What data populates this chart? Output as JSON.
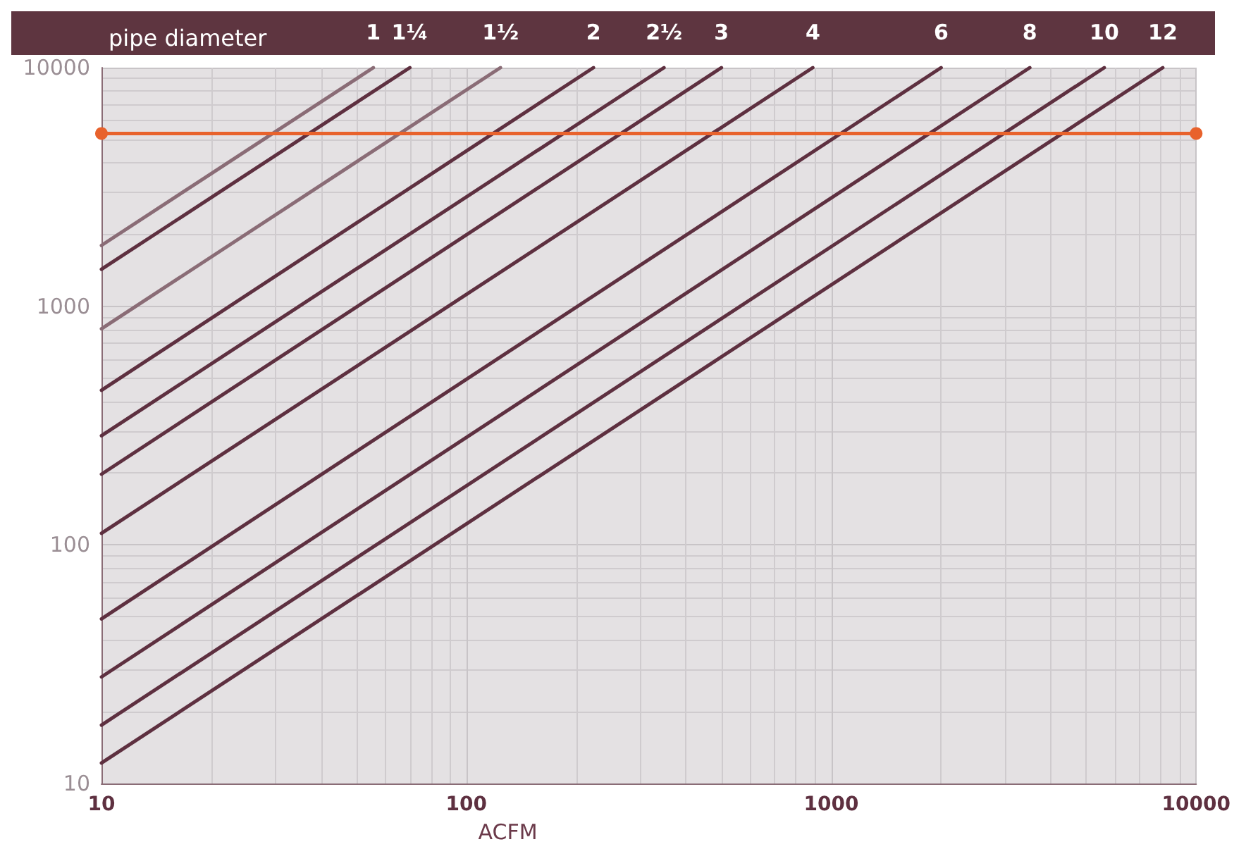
{
  "chart_data": {
    "type": "line",
    "title": "pipe diameter",
    "xlabel": "ACFM",
    "series": [
      {
        "name": "1",
        "color": "#8a6c76",
        "x": [
          10,
          55.6
        ],
        "values": [
          1800,
          10000
        ]
      },
      {
        "name": "1¼",
        "color": "#5e3040",
        "x": [
          10,
          70
        ],
        "values": [
          1430,
          10000
        ]
      },
      {
        "name": "1½",
        "color": "#8a6c76",
        "x": [
          10,
          124
        ],
        "values": [
          805,
          10000
        ]
      },
      {
        "name": "2",
        "color": "#5e3040",
        "x": [
          10,
          223
        ],
        "values": [
          445,
          10000
        ]
      },
      {
        "name": "2½",
        "color": "#5e3040",
        "x": [
          10,
          348
        ],
        "values": [
          287,
          10000
        ]
      },
      {
        "name": "3",
        "color": "#5e3040",
        "x": [
          10,
          500
        ],
        "values": [
          198,
          10000
        ]
      },
      {
        "name": "4",
        "color": "#5e3040",
        "x": [
          10,
          890
        ],
        "values": [
          112,
          10000
        ]
      },
      {
        "name": "6",
        "color": "#5e3040",
        "x": [
          10,
          2000
        ],
        "values": [
          49,
          10000
        ]
      },
      {
        "name": "8",
        "color": "#5e3040",
        "x": [
          10,
          3500
        ],
        "values": [
          28,
          10000
        ]
      },
      {
        "name": "10",
        "color": "#5e3040",
        "x": [
          10,
          5600
        ],
        "values": [
          17.6,
          10000
        ]
      },
      {
        "name": "12",
        "color": "#5e3040",
        "x": [
          10,
          8100
        ],
        "values": [
          12.2,
          10000
        ]
      },
      {
        "color": "#e8622c",
        "x": [
          10,
          10000
        ],
        "values": [
          5300,
          5300
        ],
        "marker": "circle"
      }
    ],
    "log": "xy",
    "xlim": [
      10,
      10000
    ],
    "ylim": [
      10,
      10000
    ],
    "xticks": [
      10,
      100,
      1000,
      10000
    ],
    "yticks": [
      10,
      100,
      1000,
      10000
    ],
    "grid": true,
    "legend": false,
    "marker": "none",
    "line_style": "solid"
  }
}
